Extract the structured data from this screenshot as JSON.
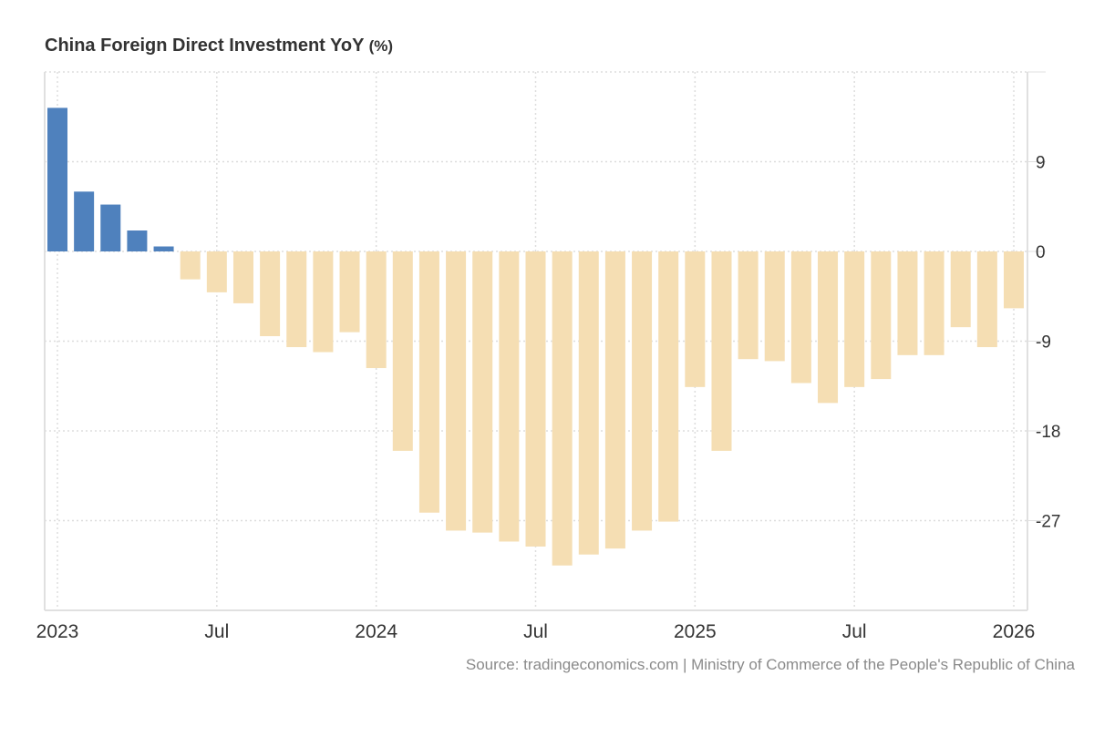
{
  "title": "China Foreign Direct Investment YoY",
  "title_unit": "(%)",
  "source": "Source: tradingeconomics.com | Ministry of Commerce of the People's Republic of China",
  "colors": {
    "positive": "#4f81bd",
    "negative": "#f5deb3",
    "grid": "#dddddd",
    "axis": "#e0e0e0"
  },
  "chart_data": {
    "type": "bar",
    "title": "China Foreign Direct Investment YoY (%)",
    "xlabel": "",
    "ylabel": "",
    "ylim": [
      -36,
      18
    ],
    "yticks": [
      9,
      0,
      -9,
      -18,
      -27
    ],
    "ytick_labels": [
      "9",
      "0",
      "-9",
      "-18",
      "-27"
    ],
    "xtick_labels": [
      {
        "label": "2023",
        "index": 0
      },
      {
        "label": "Jul",
        "index": 6
      },
      {
        "label": "2024",
        "index": 12
      },
      {
        "label": "Jul",
        "index": 18
      },
      {
        "label": "2025",
        "index": 24
      },
      {
        "label": "Jul",
        "index": 30
      },
      {
        "label": "2026",
        "index": 36
      }
    ],
    "grid": true,
    "y_axis_position": "right",
    "categories": [
      "2023-01",
      "2023-02",
      "2023-03",
      "2023-04",
      "2023-05",
      "2023-06",
      "2023-07",
      "2023-08",
      "2023-09",
      "2023-10",
      "2023-11",
      "2023-12",
      "2024-01",
      "2024-02",
      "2024-03",
      "2024-04",
      "2024-05",
      "2024-06",
      "2024-07",
      "2024-08",
      "2024-09",
      "2024-10",
      "2024-11",
      "2024-12",
      "2025-01",
      "2025-02",
      "2025-03",
      "2025-04",
      "2025-05",
      "2025-06",
      "2025-07",
      "2025-08",
      "2025-09",
      "2025-10",
      "2025-11",
      "2025-12",
      "2026-01"
    ],
    "values": [
      14.4,
      6.0,
      4.7,
      2.1,
      0.5,
      -2.8,
      -4.1,
      -5.2,
      -8.5,
      -9.6,
      -10.1,
      -8.1,
      -11.7,
      -20.0,
      -26.2,
      -28.0,
      -28.2,
      -29.1,
      -29.6,
      -31.5,
      -30.4,
      -29.8,
      -28.0,
      -27.1,
      -13.6,
      -20.0,
      -10.8,
      -11.0,
      -13.2,
      -15.2,
      -13.6,
      -12.8,
      -10.4,
      -10.4,
      -7.6,
      -9.6,
      -5.7
    ]
  }
}
